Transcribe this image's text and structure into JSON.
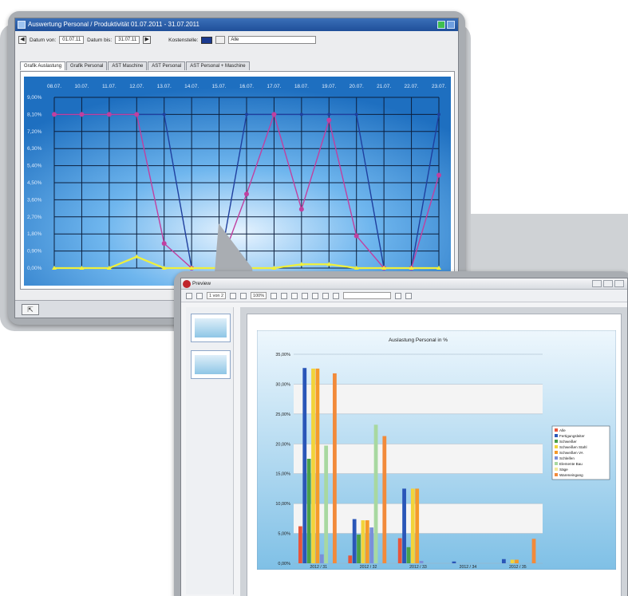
{
  "window1": {
    "title": "Auswertung Personal / Produktivität 01.07.2011 - 31.07.2011",
    "toolbar": {
      "date_from_label": "Datum von:",
      "date_from_value": "01.07.11",
      "date_to_label": "Datum bis:",
      "date_to_value": "31.07.11",
      "color_label": "Kostenstelle:",
      "text_value": "Alle"
    },
    "tabs": [
      "Grafik Auslastung",
      "Grafik Personal",
      "AST Maschine",
      "AST Personal",
      "AST Personal + Maschine"
    ],
    "active_tab": 0
  },
  "window2": {
    "title": "Preview",
    "toolbar": {
      "page_value": "1 von 2",
      "zoom_value": "100%"
    },
    "thumbnails": [
      "page-1",
      "page-2"
    ]
  },
  "chart_data": [
    {
      "type": "line",
      "categories": [
        "08.07.",
        "10.07.",
        "11.07.",
        "12.07.",
        "13.07.",
        "14.07.",
        "15.07.",
        "16.07.",
        "17.07.",
        "18.07.",
        "19.07.",
        "20.07.",
        "21.07.",
        "22.07.",
        "23.07."
      ],
      "yticks": [
        "9,00%",
        "8,10%",
        "7,20%",
        "6,30%",
        "5,40%",
        "4,50%",
        "3,60%",
        "2,70%",
        "1,80%",
        "0,90%",
        "0,00%"
      ],
      "ylim": [
        0,
        9
      ],
      "series": [
        {
          "values": [
            8.1,
            8.1,
            8.1,
            8.1,
            8.1,
            0.0,
            0.0,
            8.1,
            8.1,
            8.1,
            8.1,
            8.1,
            0.0,
            0.0,
            8.1
          ],
          "color": "#1f3f9e"
        },
        {
          "values": [
            8.1,
            8.1,
            8.1,
            8.1,
            1.3,
            0.0,
            0.0,
            3.9,
            8.1,
            3.1,
            7.8,
            1.7,
            0.0,
            0.0,
            4.9
          ],
          "color": "#c040a0"
        },
        {
          "values": [
            0.0,
            0.0,
            0.0,
            0.6,
            0.0,
            0.0,
            0.0,
            0.0,
            0.0,
            0.2,
            0.2,
            0.0,
            0.0,
            0.0,
            0.0
          ],
          "color": "#f0f03a"
        }
      ],
      "grid": true
    },
    {
      "type": "bar",
      "title": "Auslastung Personal in %",
      "categories": [
        "2012 / 31",
        "2012 / 32",
        "2012 / 33",
        "2012 / 34",
        "2012 / 35"
      ],
      "yticks": [
        "35,00%",
        "30,00%",
        "25,00%",
        "20,00%",
        "15,00%",
        "10,00%",
        "5,00%",
        "0,00%"
      ],
      "ylim": [
        0,
        35
      ],
      "series": [
        {
          "name": "Alle",
          "color": "#e8553a",
          "values": [
            6.2,
            1.3,
            4.2,
            0.0,
            0.0
          ]
        },
        {
          "name": "Fertigungsleiter",
          "color": "#2a56b8",
          "values": [
            32.7,
            7.4,
            12.5,
            0.3,
            0.7
          ]
        },
        {
          "name": "Schweißer",
          "color": "#4aa04a",
          "values": [
            17.5,
            4.8,
            2.7,
            0.0,
            0.0
          ]
        },
        {
          "name": "Schweißen Stahl",
          "color": "#f2d43a",
          "values": [
            32.6,
            7.2,
            12.5,
            0.0,
            0.6
          ]
        },
        {
          "name": "Schweißen VA",
          "color": "#f59a2a",
          "values": [
            32.6,
            7.2,
            12.5,
            0.0,
            0.6
          ]
        },
        {
          "name": "Schleifen",
          "color": "#7b8fd8",
          "values": [
            1.5,
            6.0,
            0.4,
            0.0,
            0.0
          ]
        },
        {
          "name": "Elemente Bau",
          "color": "#a8d8a0",
          "values": [
            19.7,
            23.2,
            0.0,
            0.0,
            0.0
          ]
        },
        {
          "name": "Säge",
          "color": "#f3ea9a",
          "values": [
            0.0,
            0.0,
            0.0,
            0.0,
            0.0
          ]
        },
        {
          "name": "Wareneingang",
          "color": "#f28a3a",
          "values": [
            31.8,
            21.3,
            0.0,
            0.0,
            4.1
          ]
        }
      ],
      "legend": "right",
      "grid": true
    }
  ]
}
